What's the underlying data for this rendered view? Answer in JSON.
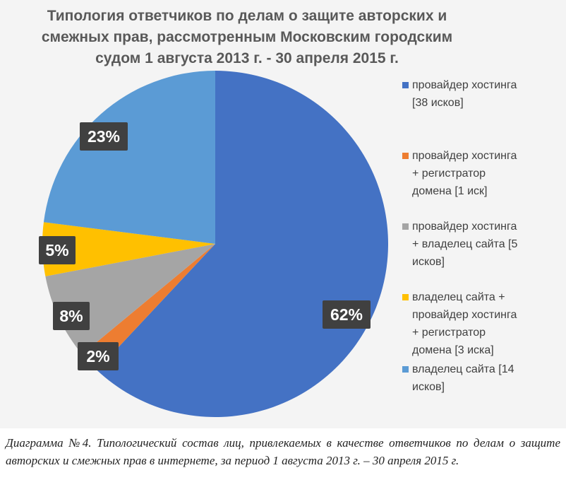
{
  "chart_data": {
    "type": "pie",
    "title": "Типология ответчиков по делам о защите авторских и смежных прав, рассмотренным Московским городским судом 1 августа 2013 г. - 30 апреля 2015 г.",
    "slices": [
      {
        "label": "провайдер хостинга [38 исков]",
        "value": 62,
        "display": "62%",
        "color": "#4472c4"
      },
      {
        "label": "провайдер хостинга + регистратор домена [1 иск]",
        "value": 2,
        "display": "2%",
        "color": "#ed7d31"
      },
      {
        "label": "провайдер хостинга + владелец сайта [5 исков]",
        "value": 8,
        "display": "8%",
        "color": "#a5a5a5"
      },
      {
        "label": "владелец сайта + провайдер хостинга + регистратор домена [3 иска]",
        "value": 5,
        "display": "5%",
        "color": "#ffc000"
      },
      {
        "label": "владелец сайта [14 исков]",
        "value": 23,
        "display": "23%",
        "color": "#5b9bd5"
      }
    ],
    "legend_position": "right"
  },
  "caption": "Диаграмма №4. Типологический состав лиц, привлекаемых в качестве ответчиков по делам о защите авторских и смежных прав в интернете, за период 1 августа 2013 г. – 30 апреля 2015 г."
}
